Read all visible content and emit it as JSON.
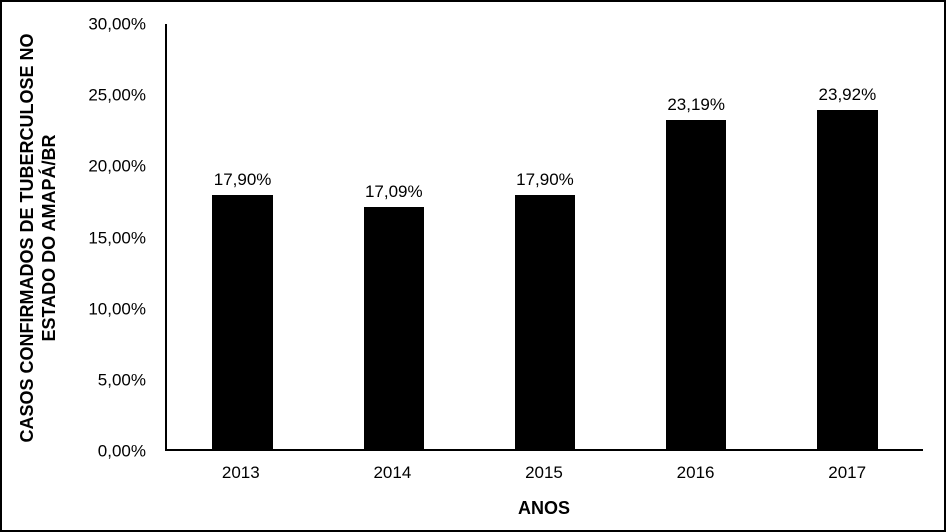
{
  "chart_data": {
    "type": "bar",
    "title": "",
    "xlabel": "ANOS",
    "ylabel": "CASOS CONFIRMADOS DE TUBERCULOSE NO ESTADO DO AMAPÁ/BR",
    "ylabel_lines": [
      "CASOS CONFIRMADOS DE TUBERCULOSE NO",
      "ESTADO DO AMAPÁ/BR"
    ],
    "categories": [
      "2013",
      "2014",
      "2015",
      "2016",
      "2017"
    ],
    "values": [
      17.9,
      17.09,
      17.9,
      23.19,
      23.92
    ],
    "value_labels": [
      "17,90%",
      "17,09%",
      "17,90%",
      "23,19%",
      "23,92%"
    ],
    "ylim": [
      0,
      30
    ],
    "yticks": [
      {
        "value": 0,
        "label": "0,00%"
      },
      {
        "value": 5,
        "label": "5,00%"
      },
      {
        "value": 10,
        "label": "10,00%"
      },
      {
        "value": 15,
        "label": "15,00%"
      },
      {
        "value": 20,
        "label": "20,00%"
      },
      {
        "value": 25,
        "label": "25,00%"
      },
      {
        "value": 30,
        "label": "30,00%"
      }
    ],
    "grid": false,
    "legend": false,
    "bar_color": "#000000",
    "background_color": "#ffffff",
    "text_color": "#000000"
  }
}
